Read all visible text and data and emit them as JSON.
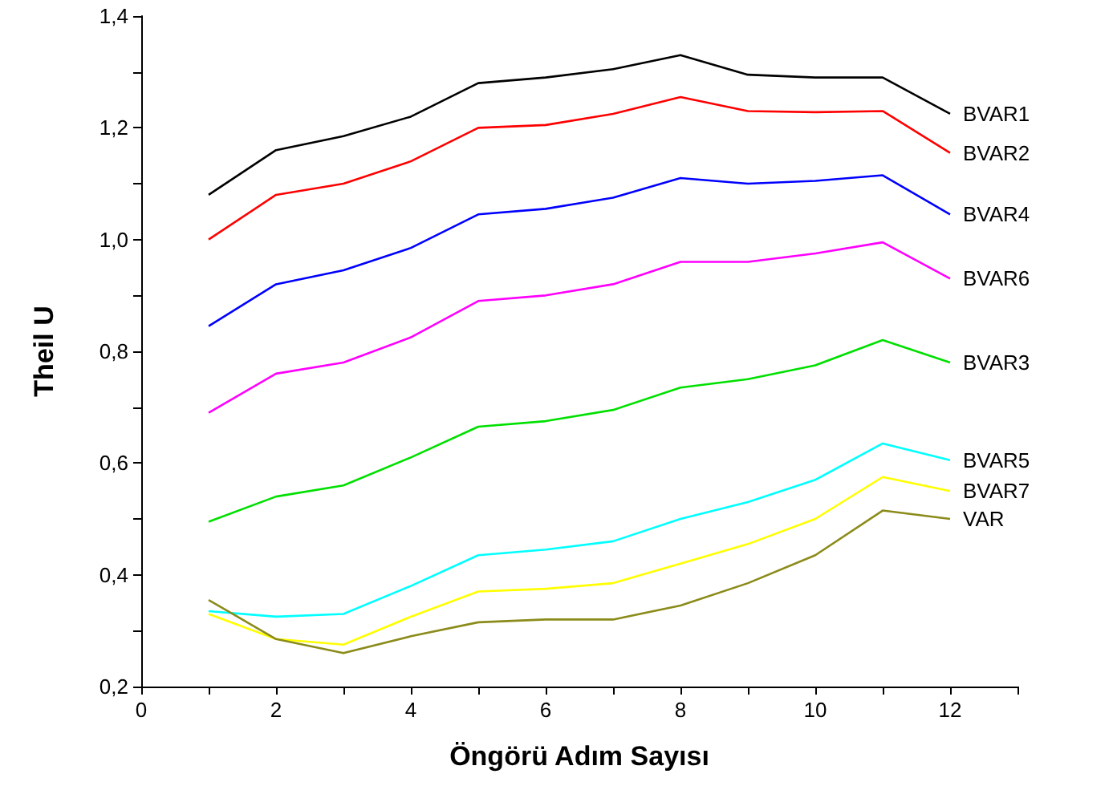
{
  "chart_data": {
    "type": "line",
    "xlabel": "Öngörü Adım Sayısı",
    "ylabel": "Theil U",
    "x": [
      1,
      2,
      3,
      4,
      5,
      6,
      7,
      8,
      9,
      10,
      11,
      12
    ],
    "series": [
      {
        "name": "BVAR1",
        "color": "#000000",
        "values": [
          1.08,
          1.16,
          1.185,
          1.22,
          1.28,
          1.29,
          1.305,
          1.33,
          1.295,
          1.29,
          1.29,
          1.225
        ]
      },
      {
        "name": "BVAR2",
        "color": "#ff0000",
        "values": [
          1.0,
          1.08,
          1.1,
          1.14,
          1.2,
          1.205,
          1.225,
          1.255,
          1.23,
          1.228,
          1.23,
          1.155
        ]
      },
      {
        "name": "BVAR4",
        "color": "#0000ff",
        "values": [
          0.845,
          0.92,
          0.945,
          0.985,
          1.045,
          1.055,
          1.075,
          1.11,
          1.1,
          1.105,
          1.115,
          1.045
        ]
      },
      {
        "name": "BVAR6",
        "color": "#ff00ff",
        "values": [
          0.69,
          0.76,
          0.78,
          0.825,
          0.89,
          0.9,
          0.92,
          0.96,
          0.96,
          0.975,
          0.995,
          0.93
        ]
      },
      {
        "name": "BVAR3",
        "color": "#00e000",
        "values": [
          0.495,
          0.54,
          0.56,
          0.61,
          0.665,
          0.675,
          0.695,
          0.735,
          0.75,
          0.775,
          0.82,
          0.78
        ]
      },
      {
        "name": "BVAR5",
        "color": "#00ffff",
        "values": [
          0.335,
          0.325,
          0.33,
          0.38,
          0.435,
          0.445,
          0.46,
          0.5,
          0.53,
          0.57,
          0.635,
          0.605
        ]
      },
      {
        "name": "BVAR7",
        "color": "#ffff00",
        "values": [
          0.33,
          0.285,
          0.275,
          0.325,
          0.37,
          0.375,
          0.385,
          0.42,
          0.455,
          0.5,
          0.575,
          0.55
        ]
      },
      {
        "name": "VAR",
        "color": "#8b8b1a",
        "values": [
          0.355,
          0.285,
          0.26,
          0.29,
          0.315,
          0.32,
          0.32,
          0.345,
          0.385,
          0.435,
          0.515,
          0.5
        ]
      }
    ],
    "xlim": [
      0,
      13
    ],
    "xticks": [
      0,
      {
        "value": 1,
        "label": null
      },
      2,
      {
        "value": 3,
        "label": null
      },
      4,
      {
        "value": 5,
        "label": null
      },
      6,
      {
        "value": 7,
        "label": null
      },
      8,
      {
        "value": 9,
        "label": null
      },
      10,
      {
        "value": 11,
        "label": null
      },
      12,
      {
        "value": 13,
        "label": null
      }
    ],
    "ylim": [
      0.2,
      1.4
    ],
    "yticks": [
      {
        "value": 0.2,
        "label": "0,2"
      },
      {
        "value": 0.3,
        "label": null
      },
      {
        "value": 0.4,
        "label": "0,4"
      },
      {
        "value": 0.5,
        "label": null
      },
      {
        "value": 0.6,
        "label": "0,6"
      },
      {
        "value": 0.7,
        "label": null
      },
      {
        "value": 0.8,
        "label": "0,8"
      },
      {
        "value": 0.9,
        "label": null
      },
      {
        "value": 1.0,
        "label": "1,0"
      },
      {
        "value": 1.1,
        "label": null
      },
      {
        "value": 1.2,
        "label": "1,2"
      },
      {
        "value": 1.3,
        "label": null
      },
      {
        "value": 1.4,
        "label": "1,4"
      }
    ],
    "grid": false,
    "legend": false,
    "marker": "none",
    "line_style": "solid"
  }
}
